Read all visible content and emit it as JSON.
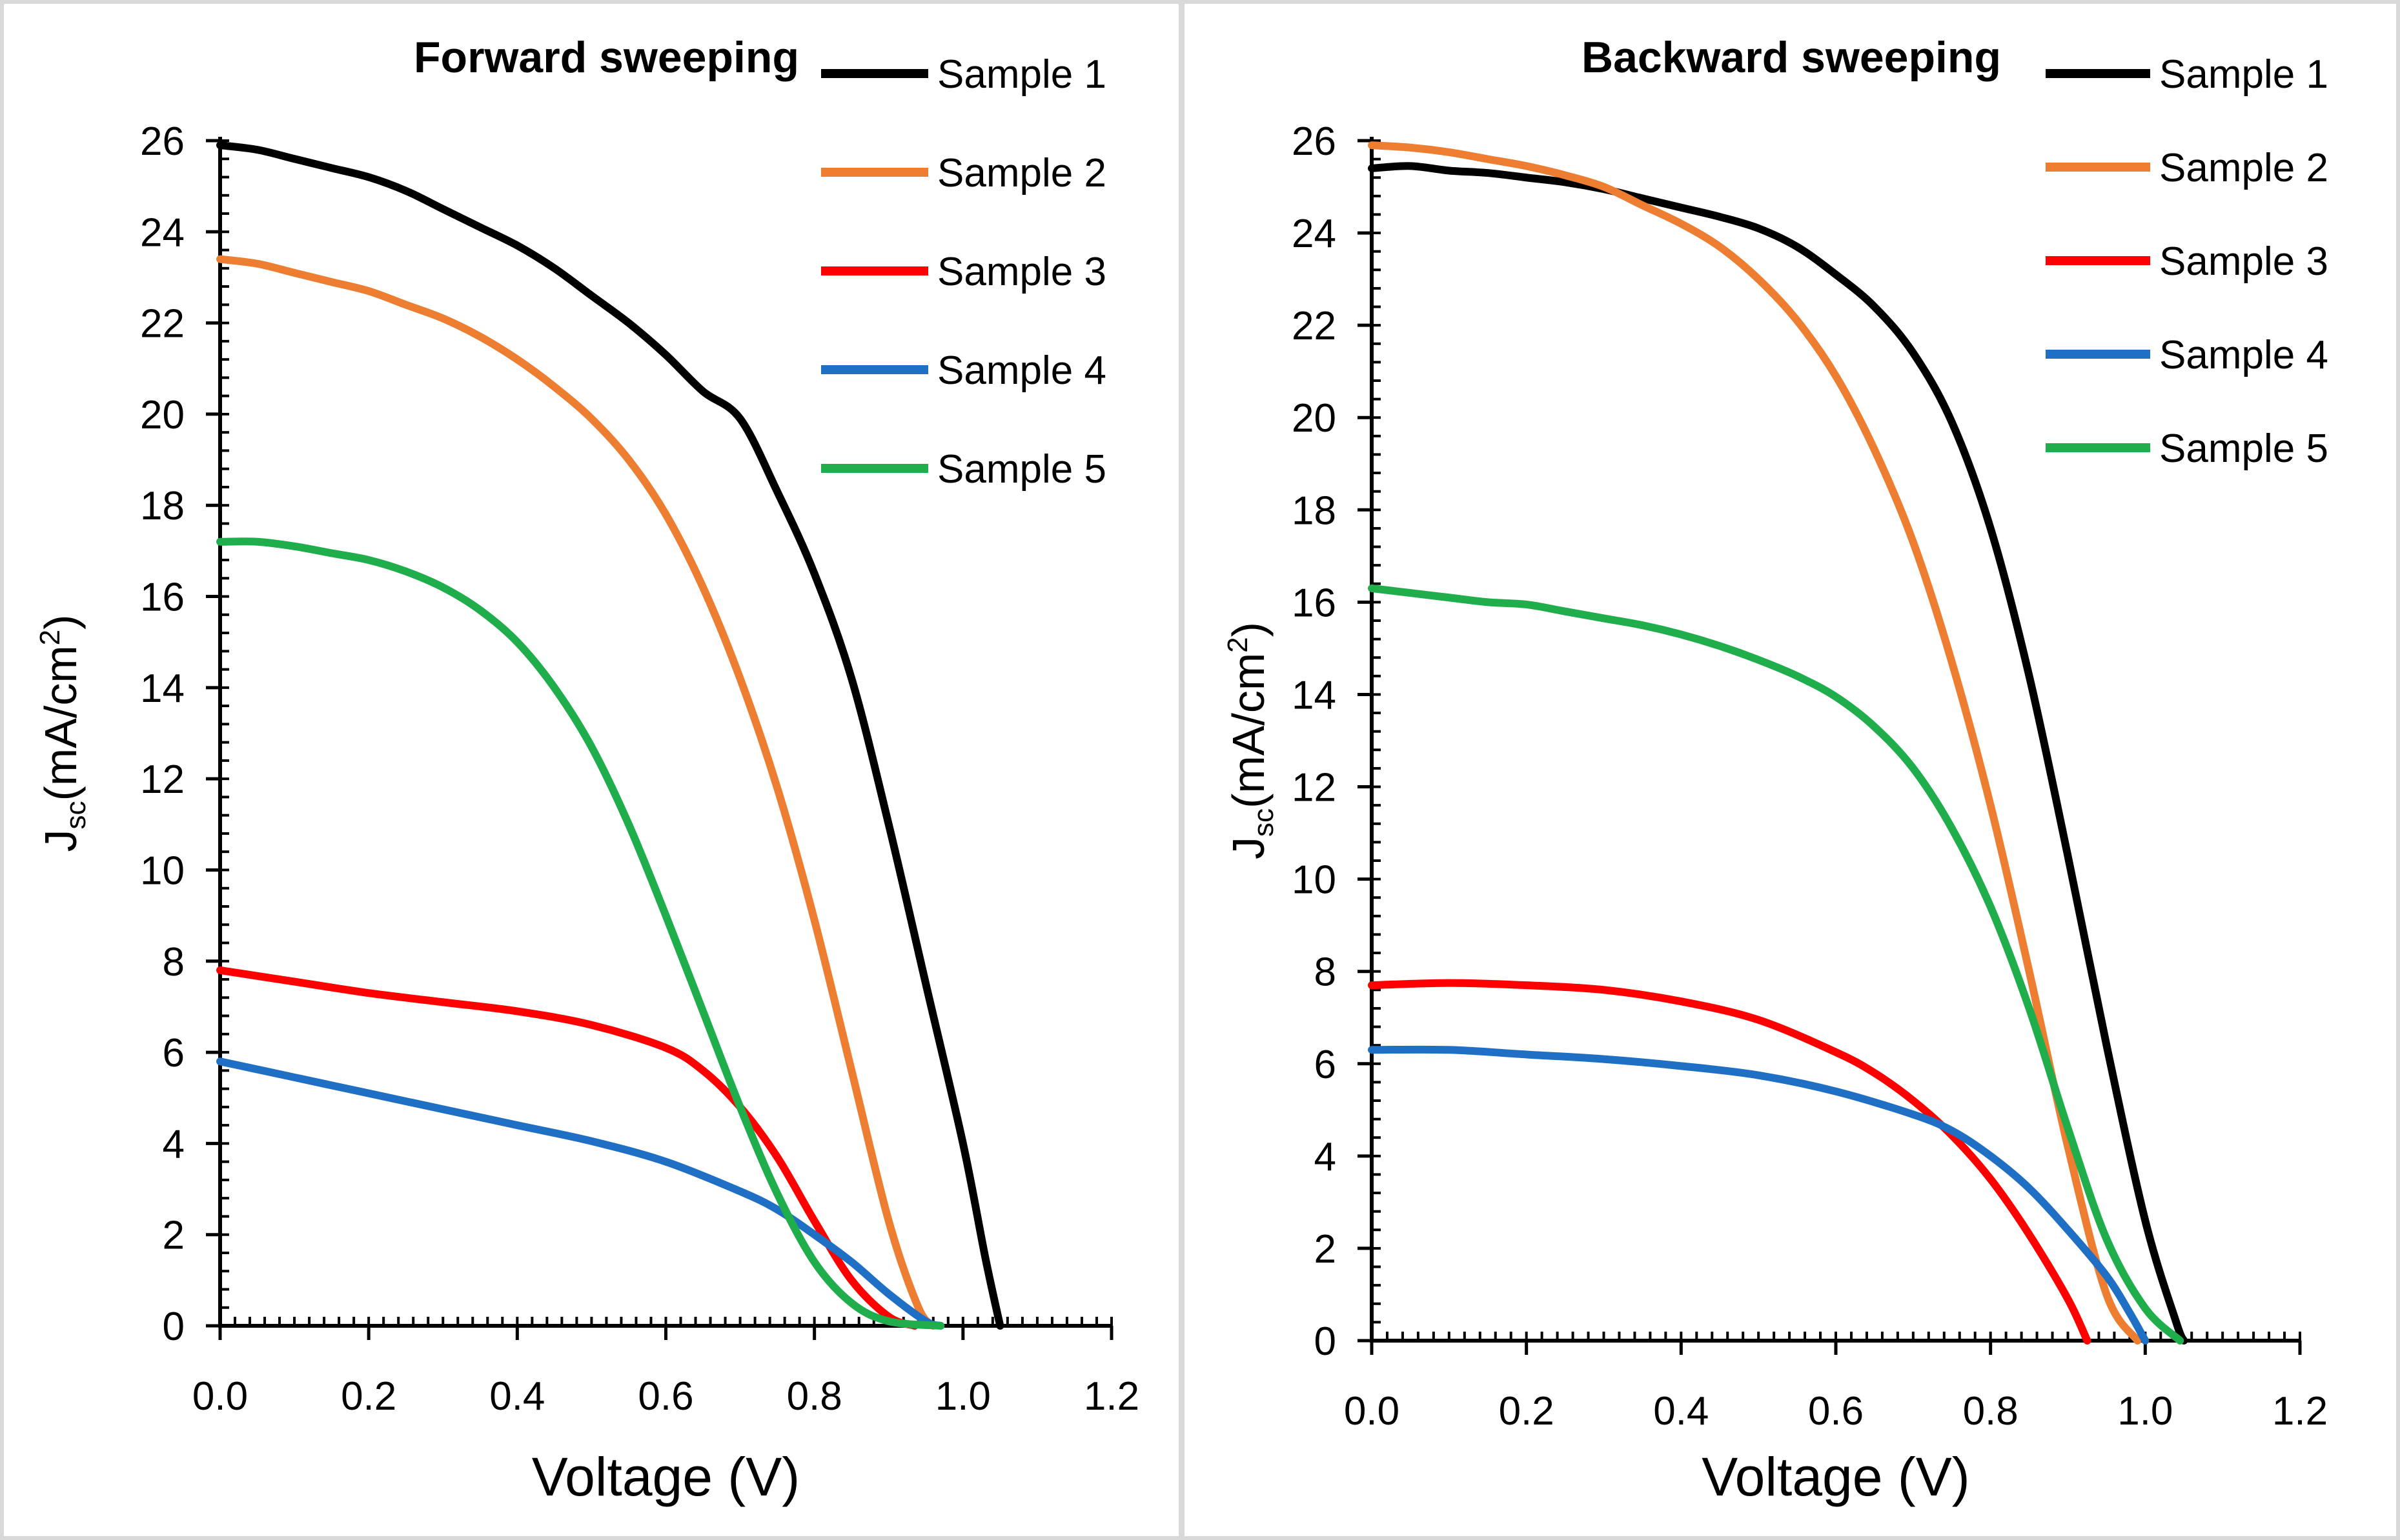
{
  "charts": [
    {
      "id": "forward",
      "type": "line",
      "title": "Forward sweeping",
      "xlabel": "Voltage (V)",
      "ylabel_main": "J",
      "ylabel_sub": "sc",
      "ylabel_rest": "(mA/cm",
      "ylabel_sup": "2",
      "ylabel_end": ")",
      "xlim": [
        0,
        1.2
      ],
      "ylim": [
        0,
        26
      ],
      "xticks": [
        "0.0",
        "0.2",
        "0.4",
        "0.6",
        "0.8",
        "1.0",
        "1.2"
      ],
      "yticks": [
        "0",
        "2",
        "4",
        "6",
        "8",
        "10",
        "12",
        "14",
        "16",
        "18",
        "20",
        "22",
        "24",
        "26"
      ],
      "series": [
        {
          "name": "Sample 1",
          "color": "#000000",
          "points": [
            [
              0,
              25.9
            ],
            [
              0.05,
              25.8
            ],
            [
              0.1,
              25.6
            ],
            [
              0.15,
              25.4
            ],
            [
              0.2,
              25.2
            ],
            [
              0.25,
              24.9
            ],
            [
              0.3,
              24.5
            ],
            [
              0.35,
              24.1
            ],
            [
              0.4,
              23.7
            ],
            [
              0.45,
              23.2
            ],
            [
              0.5,
              22.6
            ],
            [
              0.55,
              22.0
            ],
            [
              0.6,
              21.3
            ],
            [
              0.65,
              20.5
            ],
            [
              0.7,
              19.9
            ],
            [
              0.75,
              18.3
            ],
            [
              0.8,
              16.5
            ],
            [
              0.85,
              14.2
            ],
            [
              0.9,
              11.0
            ],
            [
              0.95,
              7.5
            ],
            [
              1.0,
              4.0
            ],
            [
              1.03,
              1.5
            ],
            [
              1.05,
              0
            ]
          ]
        },
        {
          "name": "Sample 2",
          "color": "#ed7d31",
          "points": [
            [
              0,
              23.4
            ],
            [
              0.05,
              23.3
            ],
            [
              0.1,
              23.1
            ],
            [
              0.15,
              22.9
            ],
            [
              0.2,
              22.7
            ],
            [
              0.25,
              22.4
            ],
            [
              0.3,
              22.1
            ],
            [
              0.35,
              21.7
            ],
            [
              0.4,
              21.2
            ],
            [
              0.45,
              20.6
            ],
            [
              0.5,
              19.9
            ],
            [
              0.55,
              19.0
            ],
            [
              0.6,
              17.8
            ],
            [
              0.65,
              16.2
            ],
            [
              0.7,
              14.2
            ],
            [
              0.75,
              11.8
            ],
            [
              0.8,
              8.9
            ],
            [
              0.85,
              5.6
            ],
            [
              0.9,
              2.3
            ],
            [
              0.94,
              0.4
            ],
            [
              0.96,
              0
            ]
          ]
        },
        {
          "name": "Sample 3",
          "color": "#ff0000",
          "points": [
            [
              0,
              7.8
            ],
            [
              0.1,
              7.55
            ],
            [
              0.2,
              7.3
            ],
            [
              0.3,
              7.1
            ],
            [
              0.4,
              6.9
            ],
            [
              0.5,
              6.6
            ],
            [
              0.6,
              6.1
            ],
            [
              0.65,
              5.6
            ],
            [
              0.7,
              4.8
            ],
            [
              0.75,
              3.7
            ],
            [
              0.8,
              2.3
            ],
            [
              0.85,
              1.0
            ],
            [
              0.9,
              0.2
            ],
            [
              0.935,
              0
            ]
          ]
        },
        {
          "name": "Sample 4",
          "color": "#1f6fc5",
          "points": [
            [
              0,
              5.8
            ],
            [
              0.1,
              5.45
            ],
            [
              0.2,
              5.1
            ],
            [
              0.3,
              4.75
            ],
            [
              0.4,
              4.4
            ],
            [
              0.5,
              4.05
            ],
            [
              0.6,
              3.6
            ],
            [
              0.7,
              2.95
            ],
            [
              0.75,
              2.55
            ],
            [
              0.8,
              2.0
            ],
            [
              0.85,
              1.4
            ],
            [
              0.9,
              0.7
            ],
            [
              0.95,
              0.1
            ],
            [
              0.97,
              0
            ]
          ]
        },
        {
          "name": "Sample 5",
          "color": "#1fae4b",
          "points": [
            [
              0,
              17.2
            ],
            [
              0.05,
              17.2
            ],
            [
              0.1,
              17.1
            ],
            [
              0.15,
              16.95
            ],
            [
              0.2,
              16.8
            ],
            [
              0.25,
              16.55
            ],
            [
              0.3,
              16.2
            ],
            [
              0.35,
              15.7
            ],
            [
              0.4,
              15.0
            ],
            [
              0.45,
              14.0
            ],
            [
              0.5,
              12.7
            ],
            [
              0.55,
              11.0
            ],
            [
              0.6,
              9.0
            ],
            [
              0.65,
              6.9
            ],
            [
              0.7,
              4.8
            ],
            [
              0.75,
              2.9
            ],
            [
              0.8,
              1.4
            ],
            [
              0.85,
              0.5
            ],
            [
              0.9,
              0.1
            ],
            [
              0.97,
              0
            ]
          ]
        }
      ]
    },
    {
      "id": "backward",
      "type": "line",
      "title": "Backward sweeping",
      "xlabel": "Voltage (V)",
      "ylabel_main": "J",
      "ylabel_sub": "sc",
      "ylabel_rest": "(mA/cm",
      "ylabel_sup": "2",
      "ylabel_end": ")",
      "xlim": [
        0,
        1.2
      ],
      "ylim": [
        0,
        26
      ],
      "xticks": [
        "0.0",
        "0.2",
        "0.4",
        "0.6",
        "0.8",
        "1.0",
        "1.2"
      ],
      "yticks": [
        "0",
        "2",
        "4",
        "6",
        "8",
        "10",
        "12",
        "14",
        "16",
        "18",
        "20",
        "22",
        "24",
        "26"
      ],
      "series": [
        {
          "name": "Sample 1",
          "color": "#000000",
          "points": [
            [
              0,
              25.4
            ],
            [
              0.05,
              25.45
            ],
            [
              0.1,
              25.35
            ],
            [
              0.15,
              25.3
            ],
            [
              0.2,
              25.2
            ],
            [
              0.25,
              25.1
            ],
            [
              0.3,
              24.95
            ],
            [
              0.35,
              24.75
            ],
            [
              0.4,
              24.55
            ],
            [
              0.45,
              24.35
            ],
            [
              0.5,
              24.1
            ],
            [
              0.55,
              23.7
            ],
            [
              0.6,
              23.1
            ],
            [
              0.65,
              22.4
            ],
            [
              0.7,
              21.4
            ],
            [
              0.75,
              19.9
            ],
            [
              0.8,
              17.6
            ],
            [
              0.85,
              14.4
            ],
            [
              0.9,
              10.5
            ],
            [
              0.95,
              6.4
            ],
            [
              1.0,
              2.6
            ],
            [
              1.04,
              0.4
            ],
            [
              1.05,
              0
            ]
          ]
        },
        {
          "name": "Sample 2",
          "color": "#ed7d31",
          "points": [
            [
              0,
              25.9
            ],
            [
              0.05,
              25.85
            ],
            [
              0.1,
              25.75
            ],
            [
              0.15,
              25.6
            ],
            [
              0.2,
              25.45
            ],
            [
              0.25,
              25.25
            ],
            [
              0.3,
              25.0
            ],
            [
              0.35,
              24.6
            ],
            [
              0.4,
              24.2
            ],
            [
              0.45,
              23.7
            ],
            [
              0.5,
              23.0
            ],
            [
              0.55,
              22.1
            ],
            [
              0.6,
              20.9
            ],
            [
              0.65,
              19.3
            ],
            [
              0.7,
              17.3
            ],
            [
              0.75,
              14.7
            ],
            [
              0.8,
              11.6
            ],
            [
              0.85,
              8.0
            ],
            [
              0.9,
              4.2
            ],
            [
              0.95,
              1.0
            ],
            [
              0.99,
              0
            ]
          ]
        },
        {
          "name": "Sample 3",
          "color": "#ff0000",
          "points": [
            [
              0,
              7.7
            ],
            [
              0.1,
              7.75
            ],
            [
              0.2,
              7.7
            ],
            [
              0.3,
              7.6
            ],
            [
              0.4,
              7.35
            ],
            [
              0.5,
              6.95
            ],
            [
              0.6,
              6.25
            ],
            [
              0.65,
              5.8
            ],
            [
              0.7,
              5.2
            ],
            [
              0.75,
              4.45
            ],
            [
              0.8,
              3.5
            ],
            [
              0.85,
              2.3
            ],
            [
              0.9,
              0.9
            ],
            [
              0.925,
              0
            ]
          ]
        },
        {
          "name": "Sample 4",
          "color": "#1f6fc5",
          "points": [
            [
              0,
              6.3
            ],
            [
              0.1,
              6.3
            ],
            [
              0.2,
              6.2
            ],
            [
              0.3,
              6.1
            ],
            [
              0.4,
              5.95
            ],
            [
              0.5,
              5.75
            ],
            [
              0.6,
              5.4
            ],
            [
              0.7,
              4.9
            ],
            [
              0.75,
              4.55
            ],
            [
              0.8,
              4.0
            ],
            [
              0.85,
              3.3
            ],
            [
              0.9,
              2.4
            ],
            [
              0.95,
              1.4
            ],
            [
              0.98,
              0.6
            ],
            [
              1.0,
              0
            ]
          ]
        },
        {
          "name": "Sample 5",
          "color": "#1fae4b",
          "points": [
            [
              0,
              16.3
            ],
            [
              0.05,
              16.2
            ],
            [
              0.1,
              16.1
            ],
            [
              0.15,
              16.0
            ],
            [
              0.2,
              15.95
            ],
            [
              0.25,
              15.8
            ],
            [
              0.3,
              15.65
            ],
            [
              0.35,
              15.5
            ],
            [
              0.4,
              15.3
            ],
            [
              0.45,
              15.05
            ],
            [
              0.5,
              14.75
            ],
            [
              0.55,
              14.4
            ],
            [
              0.6,
              13.95
            ],
            [
              0.65,
              13.3
            ],
            [
              0.7,
              12.4
            ],
            [
              0.75,
              11.1
            ],
            [
              0.8,
              9.4
            ],
            [
              0.85,
              7.2
            ],
            [
              0.9,
              4.6
            ],
            [
              0.95,
              2.2
            ],
            [
              1.0,
              0.7
            ],
            [
              1.045,
              0
            ]
          ]
        }
      ]
    }
  ]
}
